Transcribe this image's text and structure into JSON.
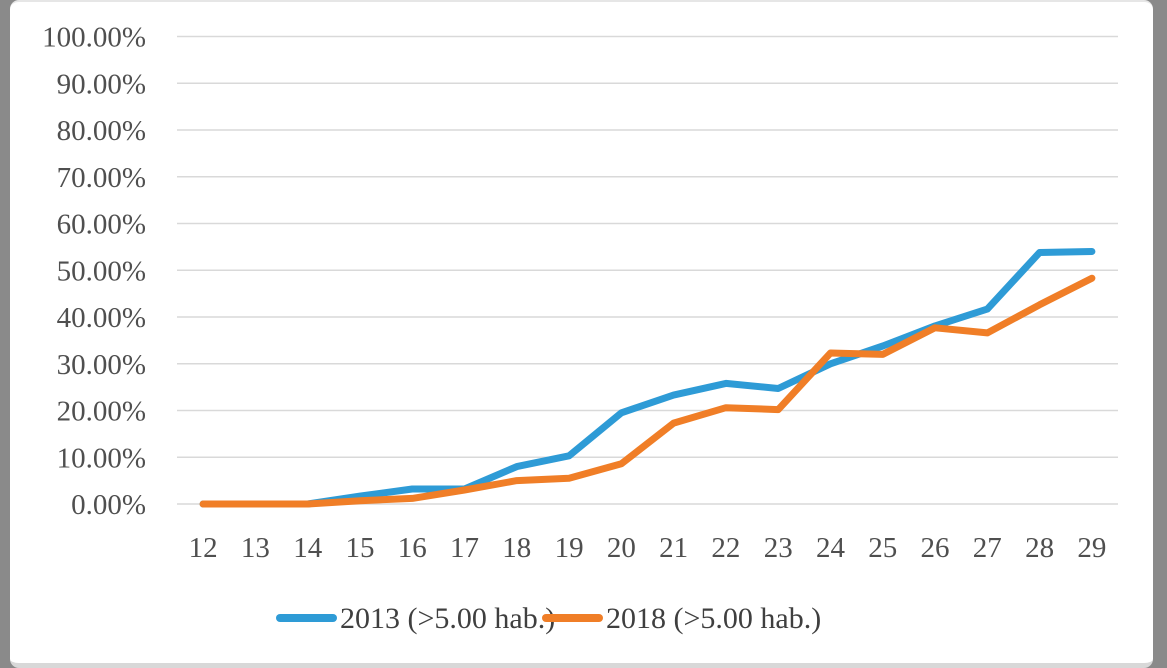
{
  "chart_data": {
    "type": "line",
    "title": "",
    "xlabel": "",
    "ylabel": "",
    "categories": [
      "12",
      "13",
      "14",
      "15",
      "16",
      "17",
      "18",
      "19",
      "20",
      "21",
      "22",
      "23",
      "24",
      "25",
      "26",
      "27",
      "28",
      "29"
    ],
    "series": [
      {
        "name": "2013 (>5.00 hab.)",
        "color": "#2e9bd6",
        "values": [
          0.0,
          0.0,
          0.0,
          1.7,
          3.2,
          3.2,
          8.0,
          10.3,
          19.5,
          23.3,
          25.8,
          24.7,
          30.0,
          33.8,
          38.1,
          41.7,
          53.8,
          54.0
        ]
      },
      {
        "name": "2018 (>5.00 hab.)",
        "color": "#f07e27",
        "values": [
          0.0,
          0.0,
          0.0,
          0.7,
          1.2,
          3.0,
          5.0,
          5.5,
          8.6,
          17.3,
          20.6,
          20.2,
          32.3,
          32.0,
          37.7,
          36.6,
          42.6,
          48.3
        ]
      }
    ],
    "y_axis": {
      "min": 0,
      "max": 100,
      "tick_step": 10,
      "tick_labels": [
        "0.00%",
        "10.00%",
        "20.00%",
        "30.00%",
        "40.00%",
        "50.00%",
        "60.00%",
        "70.00%",
        "80.00%",
        "90.00%",
        "100.00%"
      ]
    },
    "grid": true,
    "legend_position": "bottom"
  },
  "styles": {
    "grid_color": "#d9d9d9",
    "axis_text_color": "#4f4f4f",
    "legend_text_color": "#3f3f3f",
    "series_blue": "#2e9bd6",
    "series_orange": "#f07e27",
    "panel_bg": "#ffffff",
    "page_bg": "#8a8a8a"
  }
}
